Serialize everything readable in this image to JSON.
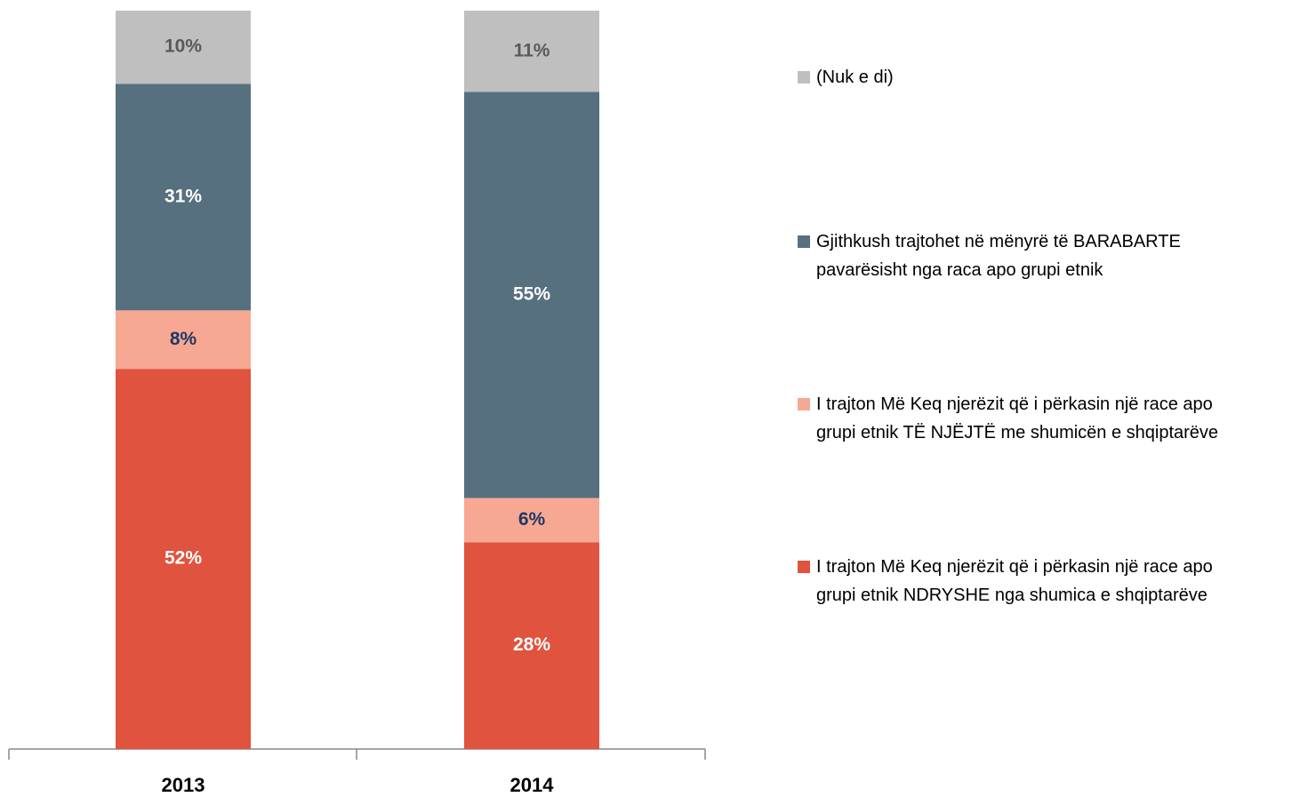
{
  "chart_data": {
    "type": "stacked_bar",
    "categories": [
      "2013",
      "2014"
    ],
    "series": [
      {
        "name": "I trajton Më Keq njerëzit që i përkasin një race apo\ngrupi etnik  NDRYSHE nga shumica e shqiptarëve",
        "color": "#e0533e",
        "label_color": "#ffffff",
        "values": [
          52,
          28
        ],
        "value_labels": [
          "52%",
          "28%"
        ]
      },
      {
        "name": "I trajton Më Keq njerëzit që i përkasin një race apo\ngrupi etnik  TË NJËJTË me shumicën e shqiptarëve",
        "color": "#f7a893",
        "label_color": "#1f3864",
        "values": [
          8,
          6
        ],
        "value_labels": [
          "8%",
          "6%"
        ]
      },
      {
        "name": "Gjithkush trajtohet në mënyrë të BARABARTE\npavarësisht nga raca apo grupi etnik",
        "color": "#56707f",
        "label_color": "#ffffff",
        "values": [
          31,
          55
        ],
        "value_labels": [
          "31%",
          "55%"
        ]
      },
      {
        "name": "(Nuk e di)",
        "color": "#bfbfbf",
        "label_color": "#595959",
        "values": [
          10,
          11
        ],
        "value_labels": [
          "10%",
          "11%"
        ]
      }
    ]
  }
}
